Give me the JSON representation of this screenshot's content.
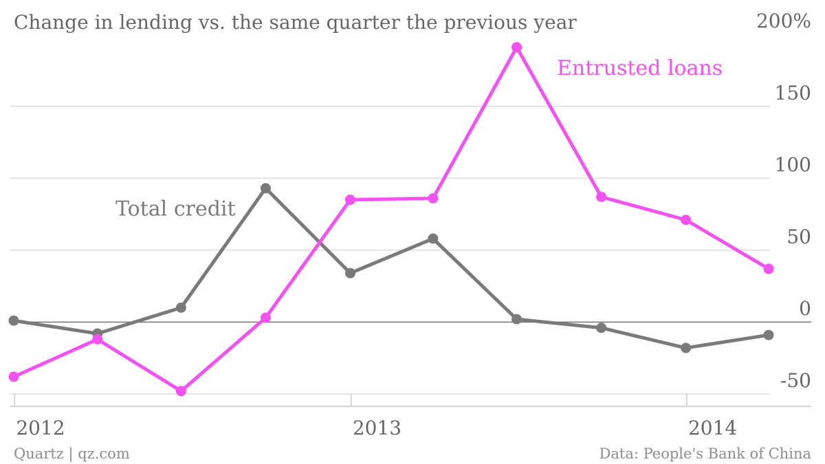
{
  "title": "Change in lending vs. the same quarter the previous year",
  "footer": {
    "source_left": "Quartz | qz.com",
    "source_right": "Data: People's Bank of China"
  },
  "colors": {
    "entrusted": "#f152f0",
    "total": "#7a7a7a",
    "text": "#666666"
  },
  "chart_data": {
    "type": "line",
    "x": [
      "2011-12-31",
      "2012-03-31",
      "2012-06-30",
      "2012-09-30",
      "2012-12-31",
      "2013-03-31",
      "2013-06-30",
      "2013-09-30",
      "2013-12-31",
      "2014-03-31"
    ],
    "xticks": [
      {
        "label": "2012",
        "date": "2012-01-01"
      },
      {
        "label": "2013",
        "date": "2013-01-01"
      },
      {
        "label": "2014",
        "date": "2014-01-01"
      }
    ],
    "yticks": [
      {
        "value": 200,
        "label": "200%"
      },
      {
        "value": 150,
        "label": "150"
      },
      {
        "value": 100,
        "label": "100"
      },
      {
        "value": 50,
        "label": "50"
      },
      {
        "value": 0,
        "label": "0"
      },
      {
        "value": -50,
        "label": "-50"
      }
    ],
    "ylim": [
      -50,
      200
    ],
    "grid": true,
    "series": [
      {
        "name": "Total credit",
        "key": "total",
        "values": [
          1,
          -8,
          10,
          93,
          34,
          58,
          2,
          -4,
          -18,
          -9
        ]
      },
      {
        "name": "Entrusted loans",
        "key": "entrusted",
        "values": [
          -38,
          -12,
          -48,
          3,
          85,
          86,
          191,
          87,
          71,
          37
        ]
      }
    ]
  }
}
